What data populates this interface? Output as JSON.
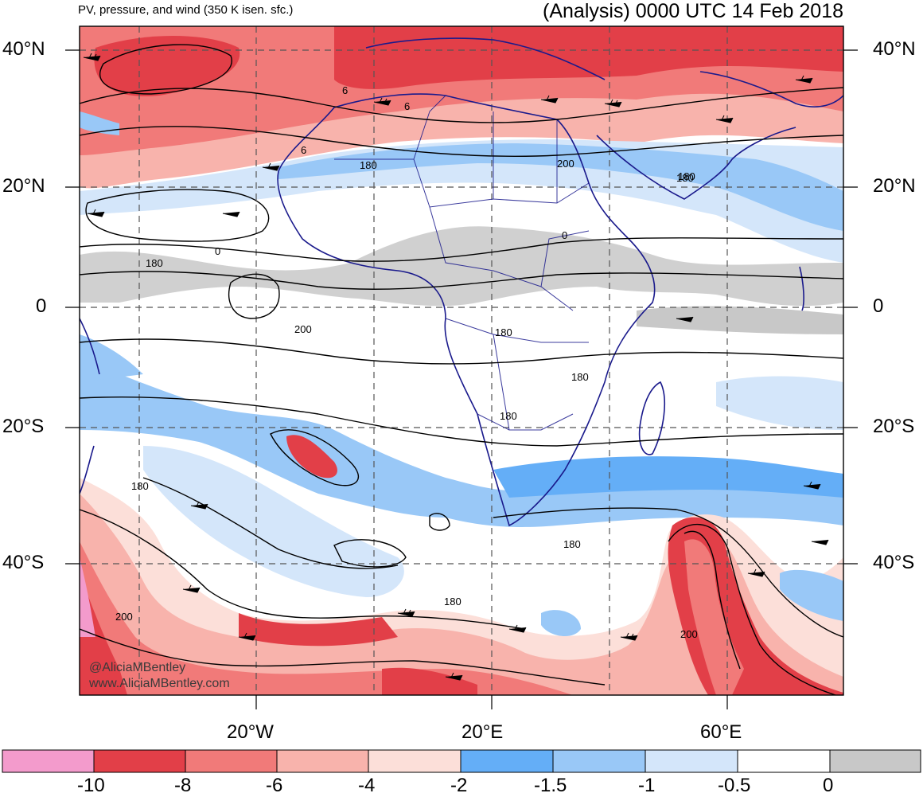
{
  "header": {
    "left_title": "PV, pressure, and wind (350 K isen. sfc.)",
    "right_title": "(Analysis) 0000 UTC 14 Feb 2018"
  },
  "axes": {
    "lat_labels": [
      "40°N",
      "20°N",
      "0",
      "20°S",
      "40°S"
    ],
    "lon_labels": [
      "20°W",
      "20°E",
      "60°E"
    ]
  },
  "contour_labels": [
    "6",
    "6",
    "180",
    "200",
    "6",
    "180",
    "180",
    "0",
    "180",
    "0",
    "200",
    "180",
    "180",
    "180",
    "180",
    "180",
    "180",
    "200",
    "200"
  ],
  "watermark": {
    "line1": "@AliciaMBentley",
    "line2": "www.AliciaMBentley.com"
  },
  "colorbar": {
    "labels": [
      "-10",
      "-8",
      "-6",
      "-4",
      "-2",
      "-1.5",
      "-1",
      "-0.5",
      "0"
    ],
    "colors": [
      "#f39bcc",
      "#e23f48",
      "#f17a79",
      "#f8b3ac",
      "#fcdfd9",
      "#64aef7",
      "#99c8f7",
      "#d4e6fa",
      "#ffffff",
      "#c8c8c8"
    ]
  },
  "palette": {
    "strong_neg": "#e23f48",
    "med_neg": "#f17a79",
    "light_neg": "#f8b3ac",
    "pale_neg": "#fcdfd9",
    "blue_strong": "#64aef7",
    "blue_med": "#99c8f7",
    "blue_light": "#d4e6fa",
    "gray": "#c8c8c8",
    "pink": "#f39bcc",
    "coast": "#1a1a8c"
  }
}
